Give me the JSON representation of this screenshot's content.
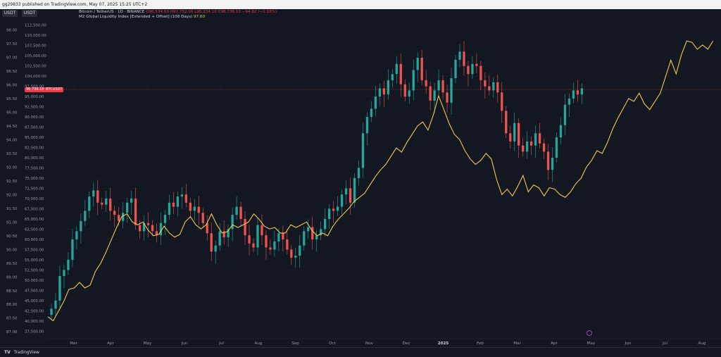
{
  "header": {
    "published_text": "gg29833 published on TradingView.com, May 07, 2025 15:25 UTC+2"
  },
  "scales": {
    "left_unit": "USDT",
    "right_unit": "USDT"
  },
  "legend": {
    "btc_title": "Bitcoin / TetherUS · 1D · BINANCE",
    "btc_open": "O96,534.63",
    "btc_high": "H97,732.00",
    "btc_low": "L95,234.10",
    "btc_close": "C96,736.10",
    "btc_change": "−94.82 (−0.10%)",
    "m2_title": "M2 Global Liquidity Index [Extended + Offset] (108 Days)",
    "m2_value": "97.60"
  },
  "price_labels": {
    "current_price": "96,736.10",
    "current_symbol": "BTCUSDT"
  },
  "footer": {
    "brand": "TradingView"
  },
  "colors": {
    "background": "#131722",
    "grid": "#1e222d",
    "candle_up": "#26a69a",
    "candle_down": "#ef5350",
    "m2_line": "#f2c94c",
    "price_line": "#f23645"
  },
  "chart_data": {
    "type": "candlestick+line",
    "x_axis_labels": [
      "Mar",
      "Apr",
      "May",
      "Jun",
      "Jul",
      "Aug",
      "Sep",
      "Oct",
      "Nov",
      "Dec",
      "2025",
      "Feb",
      "Mar",
      "Apr",
      "May",
      "Jun",
      "Jul",
      "Aug"
    ],
    "right_axis": {
      "ticks": [
        112500,
        110000,
        107500,
        105000,
        102500,
        100000,
        97500,
        95000,
        92500,
        90000,
        87500,
        85000,
        82500,
        80000,
        77500,
        75000,
        72500,
        70000,
        67500,
        65000,
        62500,
        60000,
        57500,
        55000,
        52500,
        50000,
        47500,
        45000,
        42500,
        40000,
        37500
      ],
      "tick_labels": [
        "112,500.00",
        "110,000.00",
        "107,500.00",
        "105,000.00",
        "102,500.00",
        "100,000.00",
        "97,500.00",
        "95,000.00",
        "92,500.00",
        "90,000.00",
        "87,500.00",
        "85,000.00",
        "82,500.00",
        "80,000.00",
        "77,500.00",
        "75,000.00",
        "72,500.00",
        "70,000.00",
        "67,500.00",
        "65,000.00",
        "62,500.00",
        "60,000.00",
        "57,500.00",
        "55,000.00",
        "52,500.00",
        "50,000.00",
        "47,500.00",
        "45,000.00",
        "42,500.00",
        "40,000.00",
        "37,500.00"
      ],
      "range": [
        36000,
        114000
      ]
    },
    "left_axis": {
      "ticks": [
        98.0,
        97.5,
        97.0,
        96.5,
        96.0,
        95.5,
        95.0,
        94.5,
        94.0,
        93.5,
        93.0,
        92.5,
        92.0,
        91.5,
        91.0,
        90.5,
        90.0,
        89.5,
        89.0,
        88.5,
        88.0,
        87.5,
        87.0
      ],
      "tick_labels": [
        "98.00",
        "97.50",
        "97.00",
        "96.50",
        "96.00",
        "95.50",
        "95.00",
        "94.50",
        "94.00",
        "93.50",
        "93.00",
        "92.50",
        "92.00",
        "91.50",
        "91.00",
        "90.50",
        "90.00",
        "89.50",
        "89.00",
        "88.50",
        "88.00",
        "87.50",
        "87.00"
      ],
      "range": [
        86.8,
        98.4
      ]
    },
    "series": [
      {
        "name": "Bitcoin / TetherUS",
        "kind": "candles",
        "axis": "right",
        "x_range_months": [
          0,
          14.35
        ],
        "closes": [
          43000,
          45000,
          51000,
          52500,
          55000,
          60000,
          62000,
          64500,
          67000,
          70500,
          72000,
          69000,
          68500,
          70000,
          67000,
          66000,
          64500,
          66500,
          69000,
          70000,
          63500,
          62000,
          64000,
          63500,
          62000,
          61000,
          64000,
          66000,
          69000,
          68000,
          70500,
          71000,
          69000,
          67000,
          68000,
          66500,
          64000,
          61500,
          57000,
          58500,
          62000,
          60500,
          62500,
          66000,
          68000,
          65000,
          61000,
          59000,
          58000,
          63500,
          61000,
          58000,
          57500,
          59500,
          61500,
          60000,
          57500,
          55500,
          56000,
          58500,
          62000,
          63000,
          60000,
          61000,
          62500,
          65000,
          67500,
          67000,
          68000,
          71000,
          72500,
          69000,
          75000,
          77500,
          86000,
          90000,
          92000,
          95000,
          97000,
          95500,
          99000,
          100500,
          103000,
          98000,
          95000,
          96500,
          101500,
          104500,
          99000,
          97500,
          94000,
          96500,
          99000,
          96000,
          93500,
          99500,
          104000,
          106000,
          102500,
          100500,
          103000,
          102500,
          99000,
          97500,
          96500,
          98500,
          96000,
          91500,
          86000,
          84000,
          88500,
          83000,
          81500,
          84000,
          83000,
          86000,
          83500,
          81500,
          77000,
          80000,
          85000,
          88000,
          93000,
          94500,
          96500,
          95500,
          97000
        ],
        "last_close": 96736.1
      },
      {
        "name": "M2 Global Liquidity Index [Extended + Offset] (108 Days)",
        "kind": "line",
        "axis": "left",
        "x_range_months": [
          0,
          17.9
        ],
        "values": [
          87.55,
          87.4,
          87.75,
          88.1,
          88.55,
          88.6,
          88.8,
          88.6,
          88.7,
          89.2,
          89.5,
          89.9,
          90.35,
          90.8,
          91.2,
          91.3,
          91.0,
          90.9,
          91.0,
          90.7,
          90.5,
          90.55,
          90.85,
          90.6,
          90.45,
          90.55,
          91.0,
          91.2,
          90.9,
          90.75,
          90.9,
          91.3,
          90.9,
          90.6,
          90.65,
          90.9,
          90.8,
          90.9,
          91.0,
          91.3,
          91.1,
          90.85,
          90.75,
          90.8,
          90.6,
          90.6,
          90.9,
          90.8,
          90.9,
          91.0,
          90.7,
          90.5,
          90.6,
          90.5,
          90.85,
          91.1,
          91.3,
          91.5,
          91.75,
          91.9,
          92.05,
          92.35,
          92.65,
          92.9,
          93.1,
          93.4,
          93.7,
          93.55,
          93.9,
          94.2,
          94.5,
          94.65,
          94.35,
          94.9,
          95.6,
          95.1,
          94.6,
          94.2,
          94.0,
          93.6,
          93.3,
          93.1,
          93.25,
          93.5,
          93.3,
          92.55,
          92.0,
          92.2,
          91.95,
          92.3,
          92.7,
          92.1,
          92.35,
          92.25,
          91.95,
          92.25,
          92.2,
          92.0,
          91.9,
          92.1,
          92.4,
          92.6,
          93.0,
          93.25,
          93.6,
          93.5,
          93.9,
          94.4,
          94.8,
          95.15,
          95.5,
          95.4,
          95.7,
          95.3,
          95.1,
          95.4,
          95.7,
          96.3,
          96.9,
          96.4,
          97.1,
          97.6,
          97.55,
          97.3,
          97.45,
          97.3,
          97.6
        ]
      }
    ],
    "current_price": 96736.1,
    "legend_position": "top-left",
    "grid": true
  }
}
